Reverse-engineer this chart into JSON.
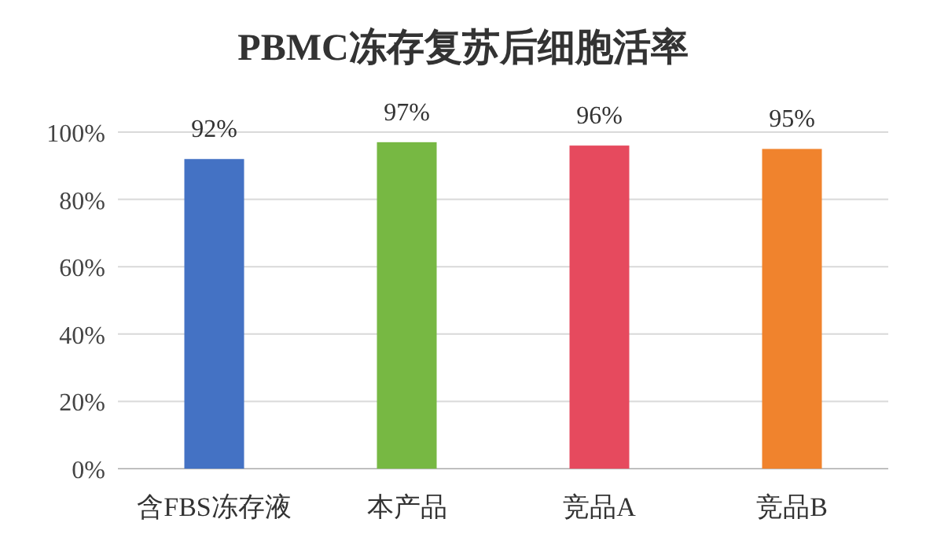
{
  "chart_data": {
    "type": "bar",
    "title": "PBMC冻存复苏后细胞活率",
    "categories": [
      "含FBS冻存液",
      "本产品",
      "竞品A",
      "竞品B"
    ],
    "values": [
      92,
      97,
      96,
      95
    ],
    "colors": [
      "#4472c4",
      "#77b843",
      "#e64a5e",
      "#f0832d"
    ],
    "value_labels": [
      "92%",
      "97%",
      "96%",
      "95%"
    ],
    "ylim": [
      0,
      100
    ],
    "yticks": [
      {
        "value": 0,
        "label": "0%"
      },
      {
        "value": 20,
        "label": "20%"
      },
      {
        "value": 40,
        "label": "40%"
      },
      {
        "value": 60,
        "label": "60%"
      },
      {
        "value": 80,
        "label": "80%"
      },
      {
        "value": 100,
        "label": "100%"
      }
    ],
    "grid": "y"
  }
}
